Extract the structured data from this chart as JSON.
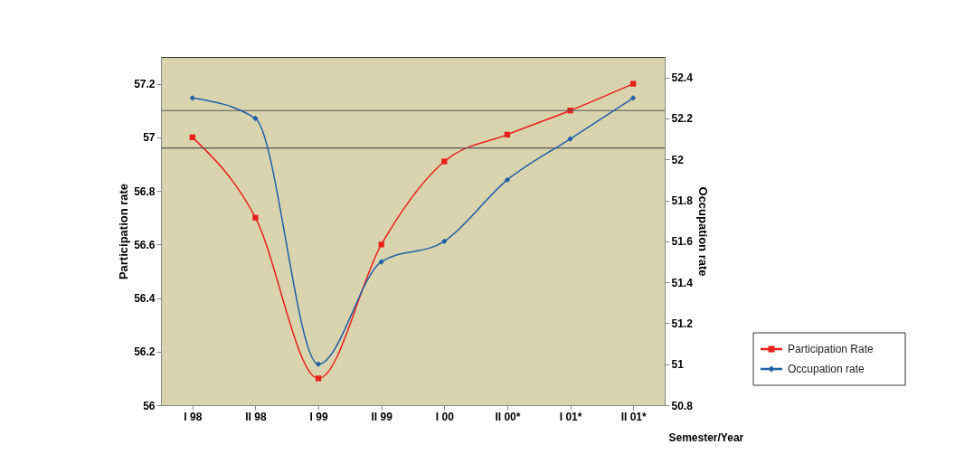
{
  "chart_data": {
    "type": "line",
    "categories": [
      "I 98",
      "II 98",
      "I 99",
      "II 99",
      "I 00",
      "II 00*",
      "I 01*",
      "II 01*"
    ],
    "xlabel": "Semester/Year",
    "ylabel": "Participation rate",
    "y2label": "Occupation rate",
    "ylim": [
      56,
      57.3
    ],
    "yticks": [
      56,
      56.2,
      56.4,
      56.6,
      56.8,
      57,
      57.2
    ],
    "y2lim": [
      50.8,
      52.5
    ],
    "y2ticks": [
      50.8,
      51,
      51.2,
      51.4,
      51.6,
      51.8,
      52,
      52.2,
      52.4
    ],
    "series": [
      {
        "name": "Participation Rate",
        "color": "#e8201c",
        "marker": "square",
        "values": [
          57.0,
          56.7,
          56.1,
          56.6,
          56.91,
          57.01,
          57.1,
          57.2
        ]
      },
      {
        "name": "Occupation rate",
        "color": "#1f5fa8",
        "marker": "diamond",
        "axis": "y2",
        "values": [
          52.3,
          52.2,
          51.0,
          51.5,
          51.6,
          51.9,
          52.1,
          52.3
        ]
      }
    ],
    "ref_lines": [
      {
        "axis": "y",
        "value": 57.1,
        "color": "#555555"
      },
      {
        "axis": "y",
        "value": 56.96,
        "color": "#555555"
      }
    ],
    "grid": false,
    "legend": "bottom right"
  }
}
